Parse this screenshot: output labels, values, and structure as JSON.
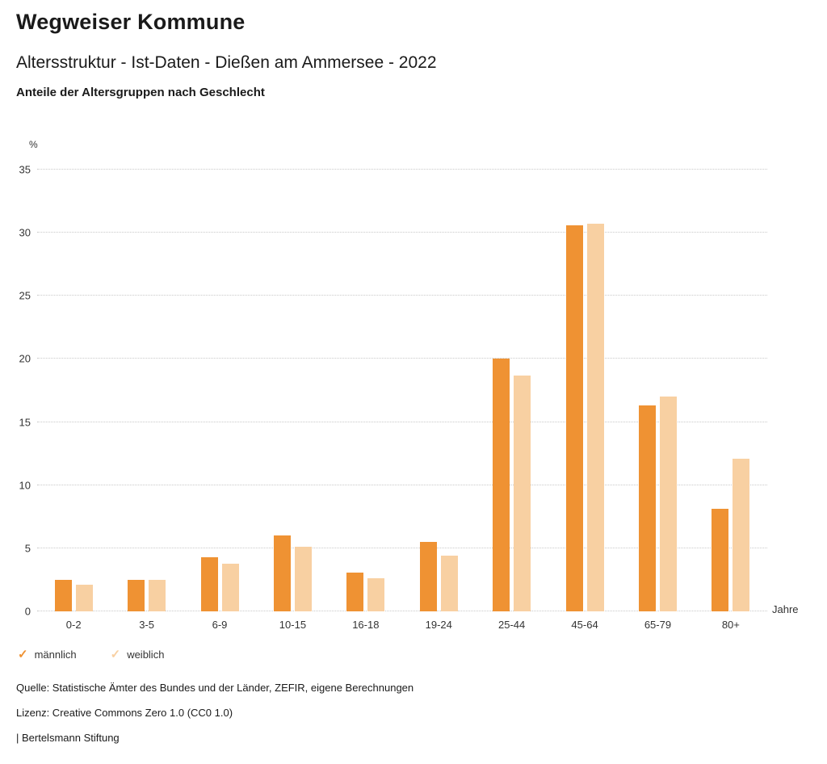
{
  "header": {
    "title": "Wegweiser Kommune",
    "subtitle": "Altersstruktur - Ist-Daten - Dießen am Ammersee - 2022",
    "description": "Anteile der Altersgruppen nach Geschlecht"
  },
  "chart_data": {
    "type": "bar",
    "title": "Anteile der Altersgruppen nach Geschlecht",
    "categories": [
      "0-2",
      "3-5",
      "6-9",
      "10-15",
      "16-18",
      "19-24",
      "25-44",
      "45-64",
      "65-79",
      "80+"
    ],
    "series": [
      {
        "name": "männlich",
        "color": "#ef9233",
        "values": [
          2.5,
          2.5,
          4.3,
          6.0,
          3.1,
          5.5,
          20.0,
          30.6,
          16.3,
          8.1
        ]
      },
      {
        "name": "weiblich",
        "color": "#f8d0a2",
        "values": [
          2.1,
          2.5,
          3.8,
          5.1,
          2.6,
          4.4,
          18.7,
          30.7,
          17.0,
          12.1
        ]
      }
    ],
    "xlabel": "Jahre",
    "ylabel": "%",
    "ylim": [
      0,
      35
    ],
    "yticks": [
      0,
      5,
      10,
      15,
      20,
      25,
      30,
      35
    ],
    "grid": true,
    "legend_position": "bottom"
  },
  "legend": {
    "items": [
      {
        "label": "männlich",
        "color": "#ef9233",
        "icon": "check"
      },
      {
        "label": "weiblich",
        "color": "#f8d0a2",
        "icon": "check"
      }
    ]
  },
  "footer": {
    "source": "Quelle: Statistische Ämter des Bundes und der Länder, ZEFIR, eigene Berechnungen",
    "license": "Lizenz: Creative Commons Zero 1.0 (CC0 1.0)",
    "attribution": "| Bertelsmann Stiftung"
  }
}
